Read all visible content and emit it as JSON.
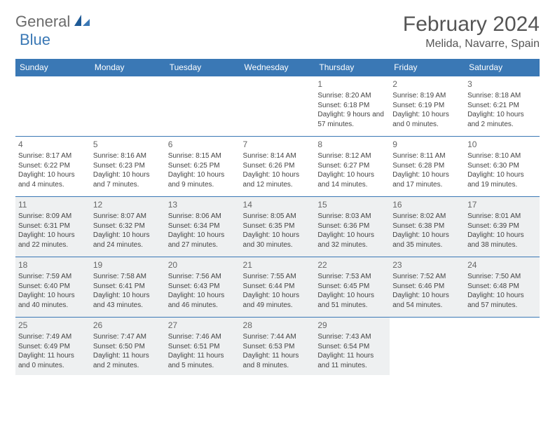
{
  "brand": {
    "text1": "General",
    "text2": "Blue",
    "text_color1": "#6b6b6b",
    "text_color2": "#3a78b5"
  },
  "title": "February 2024",
  "location": "Melida, Navarre, Spain",
  "header_bg": "#3a78b5",
  "header_fg": "#ffffff",
  "border_color": "#3a78b5",
  "shade_color": "#eef0f1",
  "days": [
    "Sunday",
    "Monday",
    "Tuesday",
    "Wednesday",
    "Thursday",
    "Friday",
    "Saturday"
  ],
  "weeks": [
    [
      null,
      null,
      null,
      null,
      {
        "n": "1",
        "sr": "Sunrise: 8:20 AM",
        "ss": "Sunset: 6:18 PM",
        "dl": "Daylight: 9 hours and 57 minutes.",
        "sh": false
      },
      {
        "n": "2",
        "sr": "Sunrise: 8:19 AM",
        "ss": "Sunset: 6:19 PM",
        "dl": "Daylight: 10 hours and 0 minutes.",
        "sh": false
      },
      {
        "n": "3",
        "sr": "Sunrise: 8:18 AM",
        "ss": "Sunset: 6:21 PM",
        "dl": "Daylight: 10 hours and 2 minutes.",
        "sh": false
      }
    ],
    [
      {
        "n": "4",
        "sr": "Sunrise: 8:17 AM",
        "ss": "Sunset: 6:22 PM",
        "dl": "Daylight: 10 hours and 4 minutes.",
        "sh": false
      },
      {
        "n": "5",
        "sr": "Sunrise: 8:16 AM",
        "ss": "Sunset: 6:23 PM",
        "dl": "Daylight: 10 hours and 7 minutes.",
        "sh": false
      },
      {
        "n": "6",
        "sr": "Sunrise: 8:15 AM",
        "ss": "Sunset: 6:25 PM",
        "dl": "Daylight: 10 hours and 9 minutes.",
        "sh": false
      },
      {
        "n": "7",
        "sr": "Sunrise: 8:14 AM",
        "ss": "Sunset: 6:26 PM",
        "dl": "Daylight: 10 hours and 12 minutes.",
        "sh": false
      },
      {
        "n": "8",
        "sr": "Sunrise: 8:12 AM",
        "ss": "Sunset: 6:27 PM",
        "dl": "Daylight: 10 hours and 14 minutes.",
        "sh": false
      },
      {
        "n": "9",
        "sr": "Sunrise: 8:11 AM",
        "ss": "Sunset: 6:28 PM",
        "dl": "Daylight: 10 hours and 17 minutes.",
        "sh": false
      },
      {
        "n": "10",
        "sr": "Sunrise: 8:10 AM",
        "ss": "Sunset: 6:30 PM",
        "dl": "Daylight: 10 hours and 19 minutes.",
        "sh": false
      }
    ],
    [
      {
        "n": "11",
        "sr": "Sunrise: 8:09 AM",
        "ss": "Sunset: 6:31 PM",
        "dl": "Daylight: 10 hours and 22 minutes.",
        "sh": true
      },
      {
        "n": "12",
        "sr": "Sunrise: 8:07 AM",
        "ss": "Sunset: 6:32 PM",
        "dl": "Daylight: 10 hours and 24 minutes.",
        "sh": true
      },
      {
        "n": "13",
        "sr": "Sunrise: 8:06 AM",
        "ss": "Sunset: 6:34 PM",
        "dl": "Daylight: 10 hours and 27 minutes.",
        "sh": true
      },
      {
        "n": "14",
        "sr": "Sunrise: 8:05 AM",
        "ss": "Sunset: 6:35 PM",
        "dl": "Daylight: 10 hours and 30 minutes.",
        "sh": true
      },
      {
        "n": "15",
        "sr": "Sunrise: 8:03 AM",
        "ss": "Sunset: 6:36 PM",
        "dl": "Daylight: 10 hours and 32 minutes.",
        "sh": true
      },
      {
        "n": "16",
        "sr": "Sunrise: 8:02 AM",
        "ss": "Sunset: 6:38 PM",
        "dl": "Daylight: 10 hours and 35 minutes.",
        "sh": true
      },
      {
        "n": "17",
        "sr": "Sunrise: 8:01 AM",
        "ss": "Sunset: 6:39 PM",
        "dl": "Daylight: 10 hours and 38 minutes.",
        "sh": true
      }
    ],
    [
      {
        "n": "18",
        "sr": "Sunrise: 7:59 AM",
        "ss": "Sunset: 6:40 PM",
        "dl": "Daylight: 10 hours and 40 minutes.",
        "sh": true
      },
      {
        "n": "19",
        "sr": "Sunrise: 7:58 AM",
        "ss": "Sunset: 6:41 PM",
        "dl": "Daylight: 10 hours and 43 minutes.",
        "sh": true
      },
      {
        "n": "20",
        "sr": "Sunrise: 7:56 AM",
        "ss": "Sunset: 6:43 PM",
        "dl": "Daylight: 10 hours and 46 minutes.",
        "sh": true
      },
      {
        "n": "21",
        "sr": "Sunrise: 7:55 AM",
        "ss": "Sunset: 6:44 PM",
        "dl": "Daylight: 10 hours and 49 minutes.",
        "sh": true
      },
      {
        "n": "22",
        "sr": "Sunrise: 7:53 AM",
        "ss": "Sunset: 6:45 PM",
        "dl": "Daylight: 10 hours and 51 minutes.",
        "sh": true
      },
      {
        "n": "23",
        "sr": "Sunrise: 7:52 AM",
        "ss": "Sunset: 6:46 PM",
        "dl": "Daylight: 10 hours and 54 minutes.",
        "sh": true
      },
      {
        "n": "24",
        "sr": "Sunrise: 7:50 AM",
        "ss": "Sunset: 6:48 PM",
        "dl": "Daylight: 10 hours and 57 minutes.",
        "sh": true
      }
    ],
    [
      {
        "n": "25",
        "sr": "Sunrise: 7:49 AM",
        "ss": "Sunset: 6:49 PM",
        "dl": "Daylight: 11 hours and 0 minutes.",
        "sh": true
      },
      {
        "n": "26",
        "sr": "Sunrise: 7:47 AM",
        "ss": "Sunset: 6:50 PM",
        "dl": "Daylight: 11 hours and 2 minutes.",
        "sh": true
      },
      {
        "n": "27",
        "sr": "Sunrise: 7:46 AM",
        "ss": "Sunset: 6:51 PM",
        "dl": "Daylight: 11 hours and 5 minutes.",
        "sh": true
      },
      {
        "n": "28",
        "sr": "Sunrise: 7:44 AM",
        "ss": "Sunset: 6:53 PM",
        "dl": "Daylight: 11 hours and 8 minutes.",
        "sh": true
      },
      {
        "n": "29",
        "sr": "Sunrise: 7:43 AM",
        "ss": "Sunset: 6:54 PM",
        "dl": "Daylight: 11 hours and 11 minutes.",
        "sh": true
      },
      null,
      null
    ]
  ]
}
